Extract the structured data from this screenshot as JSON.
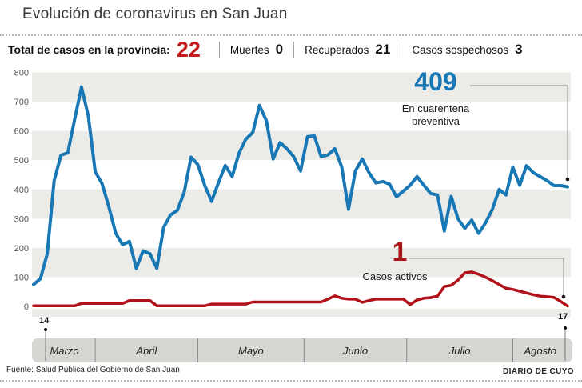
{
  "header": {
    "title": "Evolución de coronavirus en San Juan"
  },
  "stats": {
    "total_label": "Total de casos en la provincia:",
    "total_value": "22",
    "items": [
      {
        "label": "Muertes",
        "value": "0"
      },
      {
        "label": "Recuperados",
        "value": "21"
      },
      {
        "label": "Casos sospechosos",
        "value": "3"
      }
    ]
  },
  "annotations": {
    "quarantine_value": "409",
    "quarantine_label_line1": "En cuarentena",
    "quarantine_label_line2": "preventiva",
    "active_value": "1",
    "active_label": "Casos activos",
    "start_day": "14",
    "end_day": "17"
  },
  "footer": {
    "source": "Fuente: Salud Pública del Gobierno de San Juan",
    "credit": "DIARIO DE CUYO"
  },
  "colors": {
    "blue": "#1878b6",
    "red": "#b1121a",
    "accent_red": "#c11b1b",
    "stripe": "#ebebe8",
    "month_band": "#d5d5d1",
    "divider": "#8a8a8a",
    "leader": "#8c8c8c",
    "tick_text": "#555555",
    "dot": "#111111"
  },
  "chart_data": {
    "type": "line",
    "title": "Evolución de coronavirus en San Juan",
    "xlabel": "",
    "ylabel": "",
    "ylim": [
      0,
      800
    ],
    "yticks": [
      0,
      100,
      200,
      300,
      400,
      500,
      600,
      700,
      800
    ],
    "x_unit": "days since 14 March",
    "x_total_days": 156,
    "start_label": "14",
    "end_label": "17",
    "months": [
      "Marzo",
      "Abril",
      "Mayo",
      "Junio",
      "Julio",
      "Agosto"
    ],
    "month_boundaries_days": [
      18,
      48,
      79,
      109,
      140
    ],
    "x_days": [
      0,
      2,
      4,
      6,
      8,
      10,
      12,
      14,
      16,
      18,
      20,
      22,
      24,
      26,
      28,
      30,
      32,
      34,
      36,
      38,
      40,
      42,
      44,
      46,
      48,
      50,
      52,
      54,
      56,
      58,
      60,
      62,
      64,
      66,
      68,
      70,
      72,
      74,
      76,
      78,
      80,
      82,
      84,
      86,
      88,
      90,
      92,
      94,
      96,
      98,
      100,
      102,
      104,
      106,
      108,
      110,
      112,
      114,
      116,
      118,
      120,
      122,
      124,
      126,
      128,
      130,
      132,
      134,
      136,
      138,
      140,
      142,
      144,
      146,
      148,
      150,
      152,
      154,
      156
    ],
    "series": [
      {
        "name": "En cuarentena preventiva",
        "color": "#1878b6",
        "end_value": 409,
        "values": [
          75,
          95,
          180,
          430,
          517,
          525,
          640,
          750,
          650,
          460,
          420,
          340,
          250,
          211,
          222,
          130,
          190,
          180,
          130,
          270,
          313,
          328,
          390,
          510,
          485,
          414,
          359,
          422,
          482,
          444,
          523,
          572,
          594,
          687,
          635,
          504,
          560,
          539,
          512,
          463,
          580,
          583,
          512,
          518,
          539,
          477,
          332,
          463,
          504,
          457,
          422,
          427,
          418,
          375,
          394,
          414,
          444,
          414,
          386,
          381,
          258,
          376,
          299,
          267,
          295,
          250,
          285,
          331,
          400,
          381,
          476,
          414,
          481,
          457,
          444,
          430,
          413,
          413,
          409
        ]
      },
      {
        "name": "Casos activos",
        "color": "#b1121a",
        "end_value": 1,
        "values": [
          2,
          2,
          2,
          2,
          2,
          2,
          2,
          10,
          10,
          10,
          10,
          10,
          10,
          10,
          20,
          20,
          20,
          20,
          2,
          2,
          2,
          2,
          2,
          2,
          2,
          2,
          8,
          8,
          8,
          8,
          8,
          8,
          15,
          15,
          15,
          15,
          15,
          15,
          15,
          15,
          15,
          15,
          15,
          25,
          36,
          28,
          25,
          25,
          14,
          20,
          25,
          25,
          25,
          25,
          25,
          6,
          22,
          28,
          30,
          35,
          68,
          72,
          90,
          115,
          118,
          110,
          100,
          88,
          75,
          62,
          58,
          52,
          46,
          40,
          35,
          33,
          31,
          17,
          1
        ]
      }
    ],
    "legend_position": "inline-annotations",
    "grid": "alternating horizontal bands"
  }
}
